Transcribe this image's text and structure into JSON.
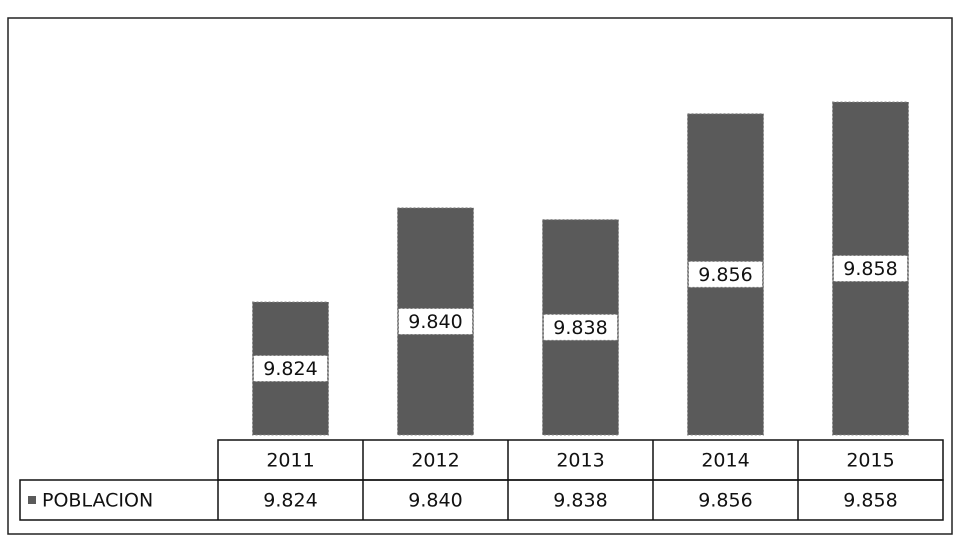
{
  "chart_data": {
    "type": "bar",
    "categories": [
      "2011",
      "2012",
      "2013",
      "2014",
      "2015"
    ],
    "series": [
      {
        "name": "POBLACION",
        "color": "#5a5a5a",
        "values": [
          9824,
          9840,
          9838,
          9856,
          9858
        ],
        "value_labels": [
          "9.824",
          "9.840",
          "9.838",
          "9.856",
          "9.858"
        ]
      }
    ]
  }
}
